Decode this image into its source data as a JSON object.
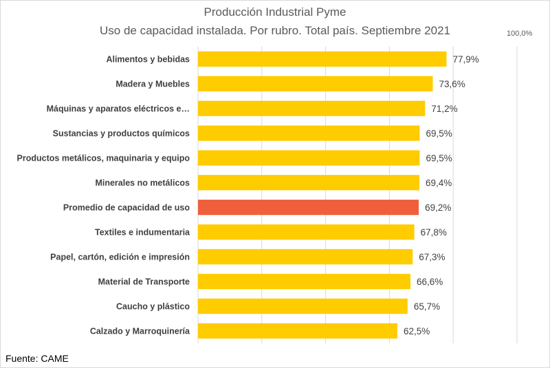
{
  "chart_data": {
    "type": "bar",
    "orientation": "horizontal",
    "title": "Producción Industrial Pyme",
    "subtitle": "Uso de capacidad instalada. Por rubro. Total país. Septiembre 2021",
    "xlim": [
      0,
      100
    ],
    "axis_max_label": "100,0%",
    "grid": true,
    "categories": [
      "Alimentos y bebidas",
      "Madera y Muebles",
      "Máquinas y aparatos eléctricos e…",
      "Sustancias y productos químicos",
      "Productos metálicos, maquinaria y equipo",
      "Minerales no metálicos",
      "Promedio de capacidad de uso",
      "Textiles e indumentaria",
      "Papel, cartón, edición e impresión",
      "Material de Transporte",
      "Caucho y plástico",
      "Calzado y Marroquinería"
    ],
    "values": [
      77.9,
      73.6,
      71.2,
      69.5,
      69.5,
      69.4,
      69.2,
      67.8,
      67.3,
      66.6,
      65.7,
      62.5
    ],
    "value_labels": [
      "77,9%",
      "73,6%",
      "71,2%",
      "69,5%",
      "69,5%",
      "69,4%",
      "69,2%",
      "67,8%",
      "67,3%",
      "66,6%",
      "65,7%",
      "62,5%"
    ],
    "highlight_index": 6,
    "colors": {
      "bar": "#FFCC00",
      "highlight": "#F05F3C",
      "grid": "#d9d9d9",
      "text": "#404040"
    }
  },
  "footer": {
    "source": "Fuente: CAME"
  }
}
